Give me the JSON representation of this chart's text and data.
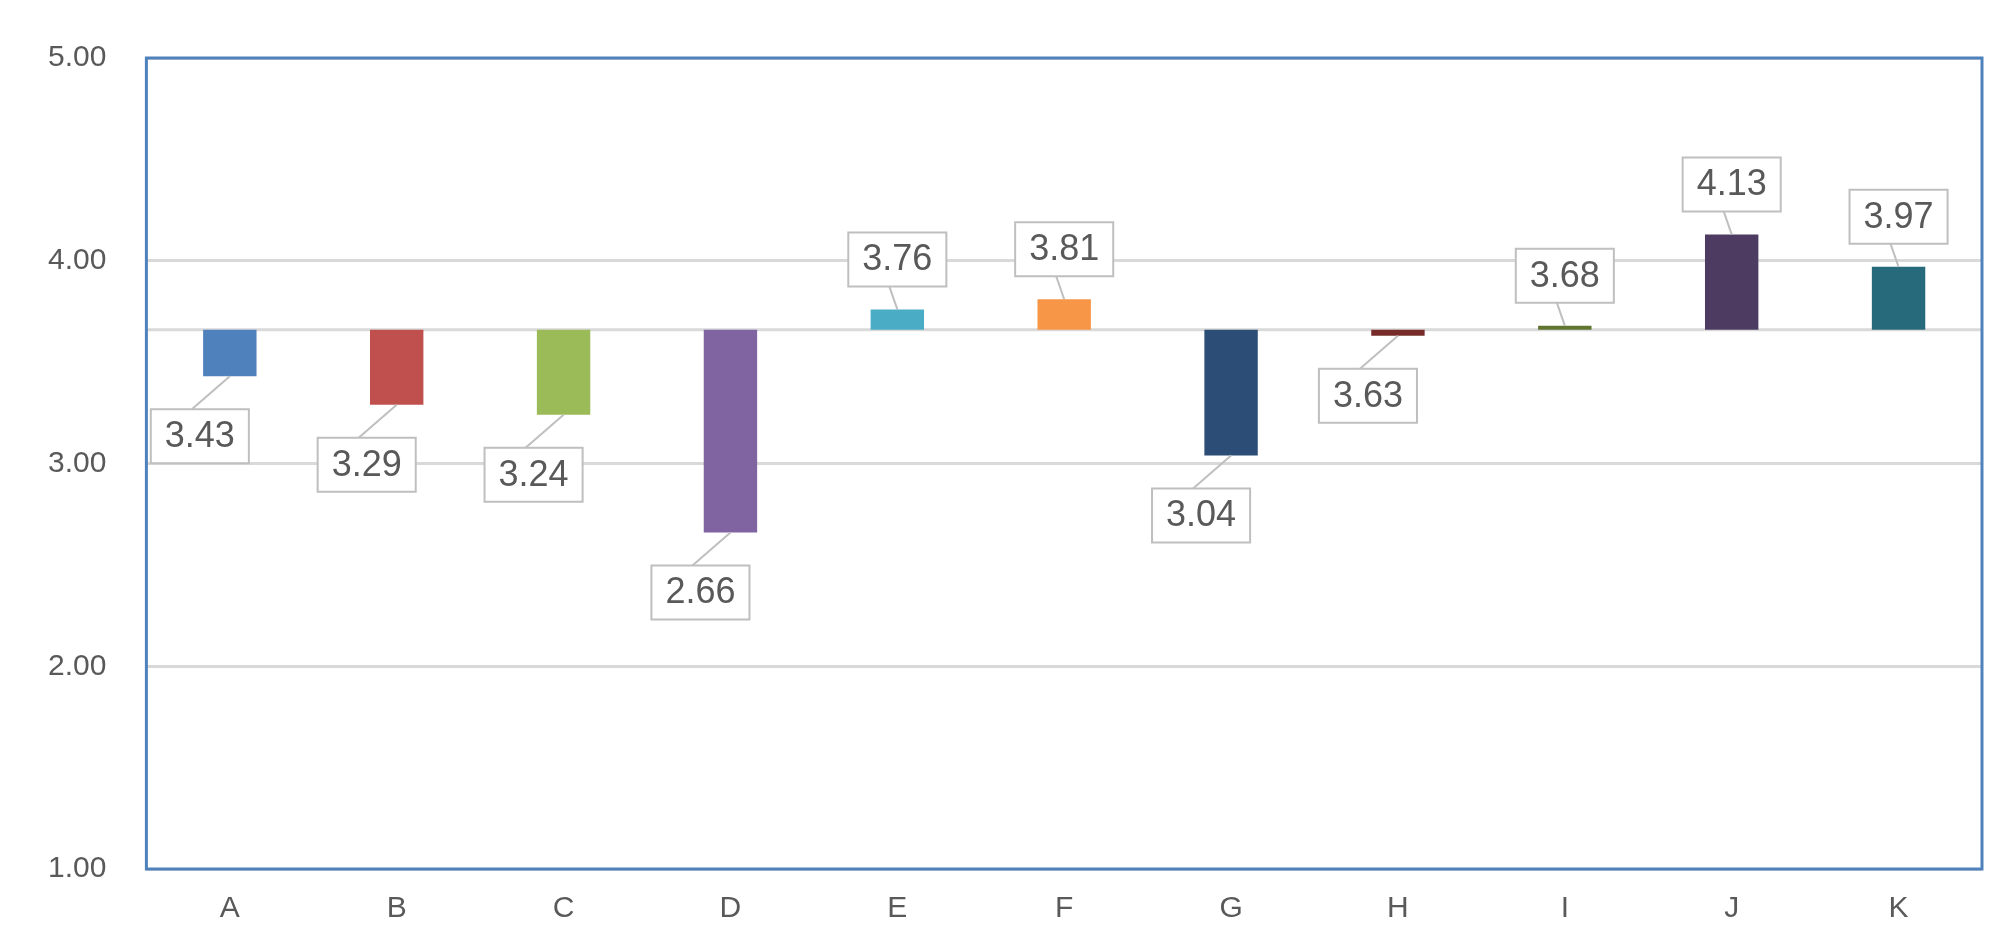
{
  "chart_data": {
    "type": "bar",
    "categories": [
      "A",
      "B",
      "C",
      "D",
      "E",
      "F",
      "G",
      "H",
      "I",
      "J",
      "K"
    ],
    "base": [
      3.66,
      3.66,
      3.66,
      3.66,
      3.66,
      3.66,
      3.66,
      3.66,
      3.66,
      3.66,
      3.66
    ],
    "values": [
      -0.23,
      -0.37,
      -0.42,
      -1.0,
      0.1,
      0.15,
      -0.62,
      -0.03,
      0.02,
      0.47,
      0.31
    ],
    "colors": [
      "#4f81bd",
      "#c0504d",
      "#9bbb59",
      "#8064a2",
      "#4bacc6",
      "#f79646",
      "#2c4d75",
      "#772c2a",
      "#5f7530",
      "#4d3b62",
      "#276a7c"
    ],
    "value_labels": [
      "3.43",
      "3.29",
      "3.24",
      "2.66",
      "3.76",
      "3.81",
      "3.04",
      "3.63",
      "3.68",
      "4.13",
      "3.97"
    ],
    "ylim": [
      1,
      5
    ],
    "yticks": [
      {
        "value": 1,
        "label": "1.00"
      },
      {
        "value": 2,
        "label": "2.00"
      },
      {
        "value": 3,
        "label": "3.00"
      },
      {
        "value": 4,
        "label": "4.00"
      },
      {
        "value": 5,
        "label": "5.00"
      }
    ],
    "ref_lines": [
      {
        "axis": "y",
        "value": 3.66,
        "color": "#d9d9d9"
      }
    ],
    "grid": "y",
    "legend": false
  }
}
